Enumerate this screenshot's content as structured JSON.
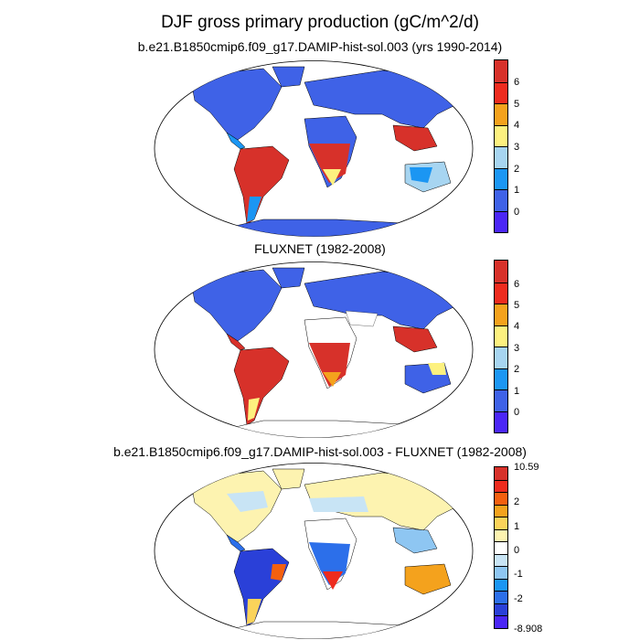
{
  "main_title": "DJF gross primary production (gC/m^2/d)",
  "panels": [
    {
      "title": "b.e21.B1850cmip6.f09_g17.DAMIP-hist-sol.003 (yrs 1990-2014)",
      "colorbar": {
        "labels": [
          "6",
          "5",
          "4",
          "3",
          "2",
          "1",
          "0"
        ],
        "colors": [
          "#d7312a",
          "#ee2b1e",
          "#f4a21d",
          "#fdf17f",
          "#a7d5f1",
          "#1b96f3",
          "#3f62e7",
          "#4b26f6"
        ]
      }
    },
    {
      "title": "FLUXNET (1982-2008)",
      "colorbar": {
        "labels": [
          "6",
          "5",
          "4",
          "3",
          "2",
          "1",
          "0"
        ],
        "colors": [
          "#d7312a",
          "#ee2b1e",
          "#f4a21d",
          "#fdf17f",
          "#a7d5f1",
          "#1b96f3",
          "#3f62e7",
          "#4b26f6"
        ]
      }
    },
    {
      "title": "b.e21.B1850cmip6.f09_g17.DAMIP-hist-sol.003 - FLUXNET (1982-2008)",
      "colorbar": {
        "labels": [
          "10.59",
          "2",
          "1",
          "0",
          "-1",
          "-2",
          "-8.908"
        ],
        "colors": [
          "#d7312a",
          "#ee2b1e",
          "#f4600f",
          "#f4a21d",
          "#fbd35a",
          "#fdf3b0",
          "#ffffff",
          "#c8e4f5",
          "#8ec6f2",
          "#1b96f3",
          "#2c6fea",
          "#2a40d8",
          "#4b26f6"
        ]
      }
    }
  ]
}
